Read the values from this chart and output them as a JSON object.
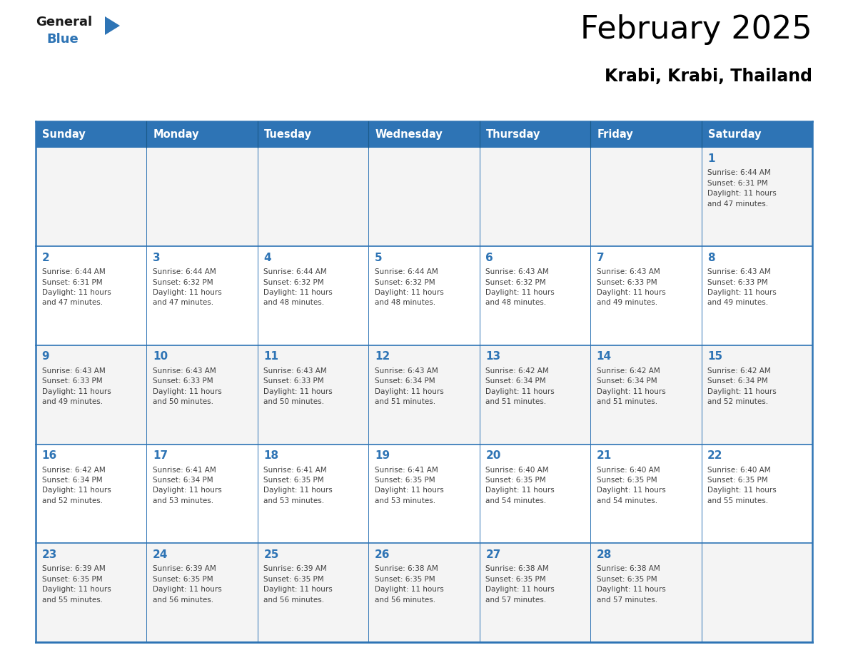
{
  "title": "February 2025",
  "subtitle": "Krabi, Krabi, Thailand",
  "days_of_week": [
    "Sunday",
    "Monday",
    "Tuesday",
    "Wednesday",
    "Thursday",
    "Friday",
    "Saturday"
  ],
  "header_bg": "#2E74B5",
  "header_text": "#FFFFFF",
  "cell_bg_odd": "#F2F2F2",
  "cell_bg_even": "#FFFFFF",
  "border_color": "#2E74B5",
  "title_color": "#000000",
  "subtitle_color": "#000000",
  "day_number_color": "#2E74B5",
  "cell_text_color": "#404040",
  "logo_general_color": "#1a1a1a",
  "logo_blue_color": "#2E74B5",
  "weeks": [
    [
      {
        "day": null,
        "info": null
      },
      {
        "day": null,
        "info": null
      },
      {
        "day": null,
        "info": null
      },
      {
        "day": null,
        "info": null
      },
      {
        "day": null,
        "info": null
      },
      {
        "day": null,
        "info": null
      },
      {
        "day": 1,
        "info": "Sunrise: 6:44 AM\nSunset: 6:31 PM\nDaylight: 11 hours\nand 47 minutes."
      }
    ],
    [
      {
        "day": 2,
        "info": "Sunrise: 6:44 AM\nSunset: 6:31 PM\nDaylight: 11 hours\nand 47 minutes."
      },
      {
        "day": 3,
        "info": "Sunrise: 6:44 AM\nSunset: 6:32 PM\nDaylight: 11 hours\nand 47 minutes."
      },
      {
        "day": 4,
        "info": "Sunrise: 6:44 AM\nSunset: 6:32 PM\nDaylight: 11 hours\nand 48 minutes."
      },
      {
        "day": 5,
        "info": "Sunrise: 6:44 AM\nSunset: 6:32 PM\nDaylight: 11 hours\nand 48 minutes."
      },
      {
        "day": 6,
        "info": "Sunrise: 6:43 AM\nSunset: 6:32 PM\nDaylight: 11 hours\nand 48 minutes."
      },
      {
        "day": 7,
        "info": "Sunrise: 6:43 AM\nSunset: 6:33 PM\nDaylight: 11 hours\nand 49 minutes."
      },
      {
        "day": 8,
        "info": "Sunrise: 6:43 AM\nSunset: 6:33 PM\nDaylight: 11 hours\nand 49 minutes."
      }
    ],
    [
      {
        "day": 9,
        "info": "Sunrise: 6:43 AM\nSunset: 6:33 PM\nDaylight: 11 hours\nand 49 minutes."
      },
      {
        "day": 10,
        "info": "Sunrise: 6:43 AM\nSunset: 6:33 PM\nDaylight: 11 hours\nand 50 minutes."
      },
      {
        "day": 11,
        "info": "Sunrise: 6:43 AM\nSunset: 6:33 PM\nDaylight: 11 hours\nand 50 minutes."
      },
      {
        "day": 12,
        "info": "Sunrise: 6:43 AM\nSunset: 6:34 PM\nDaylight: 11 hours\nand 51 minutes."
      },
      {
        "day": 13,
        "info": "Sunrise: 6:42 AM\nSunset: 6:34 PM\nDaylight: 11 hours\nand 51 minutes."
      },
      {
        "day": 14,
        "info": "Sunrise: 6:42 AM\nSunset: 6:34 PM\nDaylight: 11 hours\nand 51 minutes."
      },
      {
        "day": 15,
        "info": "Sunrise: 6:42 AM\nSunset: 6:34 PM\nDaylight: 11 hours\nand 52 minutes."
      }
    ],
    [
      {
        "day": 16,
        "info": "Sunrise: 6:42 AM\nSunset: 6:34 PM\nDaylight: 11 hours\nand 52 minutes."
      },
      {
        "day": 17,
        "info": "Sunrise: 6:41 AM\nSunset: 6:34 PM\nDaylight: 11 hours\nand 53 minutes."
      },
      {
        "day": 18,
        "info": "Sunrise: 6:41 AM\nSunset: 6:35 PM\nDaylight: 11 hours\nand 53 minutes."
      },
      {
        "day": 19,
        "info": "Sunrise: 6:41 AM\nSunset: 6:35 PM\nDaylight: 11 hours\nand 53 minutes."
      },
      {
        "day": 20,
        "info": "Sunrise: 6:40 AM\nSunset: 6:35 PM\nDaylight: 11 hours\nand 54 minutes."
      },
      {
        "day": 21,
        "info": "Sunrise: 6:40 AM\nSunset: 6:35 PM\nDaylight: 11 hours\nand 54 minutes."
      },
      {
        "day": 22,
        "info": "Sunrise: 6:40 AM\nSunset: 6:35 PM\nDaylight: 11 hours\nand 55 minutes."
      }
    ],
    [
      {
        "day": 23,
        "info": "Sunrise: 6:39 AM\nSunset: 6:35 PM\nDaylight: 11 hours\nand 55 minutes."
      },
      {
        "day": 24,
        "info": "Sunrise: 6:39 AM\nSunset: 6:35 PM\nDaylight: 11 hours\nand 56 minutes."
      },
      {
        "day": 25,
        "info": "Sunrise: 6:39 AM\nSunset: 6:35 PM\nDaylight: 11 hours\nand 56 minutes."
      },
      {
        "day": 26,
        "info": "Sunrise: 6:38 AM\nSunset: 6:35 PM\nDaylight: 11 hours\nand 56 minutes."
      },
      {
        "day": 27,
        "info": "Sunrise: 6:38 AM\nSunset: 6:35 PM\nDaylight: 11 hours\nand 57 minutes."
      },
      {
        "day": 28,
        "info": "Sunrise: 6:38 AM\nSunset: 6:35 PM\nDaylight: 11 hours\nand 57 minutes."
      },
      {
        "day": null,
        "info": null
      }
    ]
  ],
  "num_weeks": 5,
  "num_cols": 7
}
